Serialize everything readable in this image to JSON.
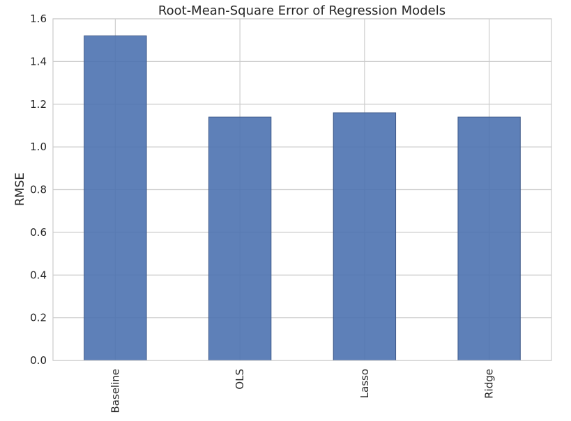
{
  "chart_data": {
    "type": "bar",
    "title": "Root-Mean-Square Error of Regression Models",
    "xlabel": "",
    "ylabel": "RMSE",
    "categories": [
      "Baseline",
      "OLS",
      "Lasso",
      "Ridge"
    ],
    "values": [
      1.52,
      1.14,
      1.16,
      1.14
    ],
    "ylim": [
      0,
      1.6
    ],
    "yticks": [
      "0.0",
      "0.2",
      "0.4",
      "0.6",
      "0.8",
      "1.0",
      "1.2",
      "1.4",
      "1.6"
    ],
    "grid": true,
    "legend": "none",
    "bar_color": "#4c72b0"
  }
}
